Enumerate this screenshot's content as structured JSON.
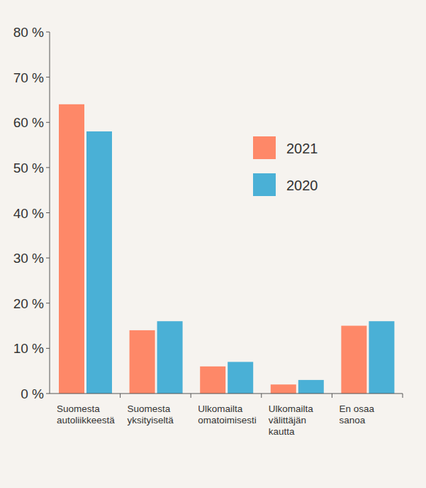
{
  "chart_data": {
    "type": "bar",
    "categories": [
      "Suomesta\nautoliikkeestä",
      "Suomesta\nyksityiseltä",
      "Ulkomailta\nomatoimisesti",
      "Ulkomailta\nvälittäjän\nkautta",
      "En osaa\nsanoa"
    ],
    "series": [
      {
        "name": "2021",
        "color": "#fe8868",
        "values": [
          64,
          14,
          6,
          2,
          15
        ]
      },
      {
        "name": "2020",
        "color": "#4ab0d6",
        "values": [
          58,
          16,
          7,
          3,
          16
        ]
      }
    ],
    "ylim": [
      0,
      80
    ],
    "yticks": [
      {
        "value": 0,
        "label": "0 %"
      },
      {
        "value": 10,
        "label": "10 %"
      },
      {
        "value": 20,
        "label": "20 %"
      },
      {
        "value": 30,
        "label": "30 %"
      },
      {
        "value": 40,
        "label": "40 %"
      },
      {
        "value": 50,
        "label": "50 %"
      },
      {
        "value": 60,
        "label": "60 %"
      },
      {
        "value": 70,
        "label": "70 %"
      },
      {
        "value": 80,
        "label": "80 %"
      }
    ],
    "grid": false,
    "legend": "right"
  }
}
